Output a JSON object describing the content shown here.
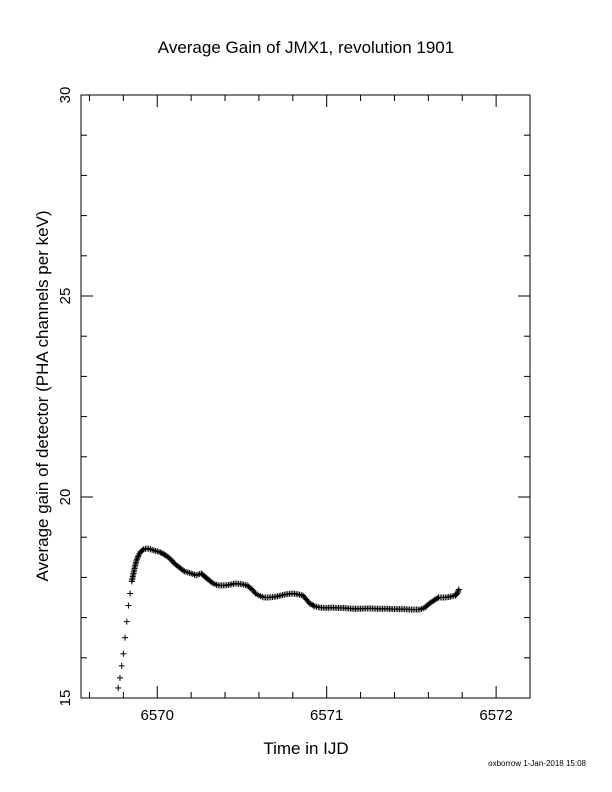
{
  "chart_data": {
    "type": "scatter",
    "title": "Average Gain of JMX1, revolution 1901",
    "xlabel": "Time in IJD",
    "ylabel": "Average gain of detector (PHA channels per keV)",
    "xlim": [
      6569.55,
      6572.2
    ],
    "ylim": [
      15,
      30
    ],
    "x_ticks": [
      "6570",
      "6571",
      "6572"
    ],
    "y_ticks": [
      "15",
      "20",
      "25",
      "30"
    ],
    "marker": "plus",
    "series": [
      {
        "x": [
          6569.77,
          6569.78,
          6569.79,
          6569.8,
          6569.81,
          6569.82,
          6569.83,
          6569.84,
          6569.85,
          6569.86,
          6569.87,
          6569.88,
          6569.89,
          6569.9,
          6569.92,
          6569.94,
          6569.96,
          6569.98,
          6570.0,
          6570.02,
          6570.05,
          6570.08,
          6570.1,
          6570.13,
          6570.16,
          6570.2,
          6570.23,
          6570.26,
          6570.28,
          6570.3,
          6570.33,
          6570.36,
          6570.4,
          6570.43,
          6570.46,
          6570.5,
          6570.53,
          6570.56,
          6570.58,
          6570.6,
          6570.63,
          6570.66,
          6570.7,
          6570.73,
          6570.76,
          6570.8,
          6570.83,
          6570.86,
          6570.88,
          6570.9,
          6570.93,
          6570.96,
          6571.0,
          6571.03,
          6571.06,
          6571.1,
          6571.15,
          6571.2,
          6571.25,
          6571.3,
          6571.35,
          6571.4,
          6571.45,
          6571.5,
          6571.55,
          6571.58,
          6571.6,
          6571.63,
          6571.66,
          6571.7,
          6571.73,
          6571.76,
          6571.77,
          6571.78
        ],
        "y": [
          15.25,
          15.5,
          15.8,
          16.1,
          16.5,
          16.9,
          17.3,
          17.6,
          17.9,
          18.1,
          18.3,
          18.45,
          18.55,
          18.63,
          18.7,
          18.72,
          18.7,
          18.67,
          18.65,
          18.62,
          18.55,
          18.45,
          18.35,
          18.25,
          18.15,
          18.1,
          18.05,
          18.1,
          18.02,
          17.95,
          17.85,
          17.8,
          17.8,
          17.82,
          17.85,
          17.83,
          17.8,
          17.7,
          17.6,
          17.55,
          17.5,
          17.5,
          17.52,
          17.55,
          17.58,
          17.6,
          17.58,
          17.55,
          17.45,
          17.35,
          17.28,
          17.25,
          17.24,
          17.25,
          17.24,
          17.24,
          17.22,
          17.22,
          17.23,
          17.22,
          17.22,
          17.21,
          17.21,
          17.2,
          17.2,
          17.25,
          17.33,
          17.42,
          17.5,
          17.5,
          17.52,
          17.55,
          17.6,
          17.7
        ]
      }
    ]
  },
  "footer": "oxborrow 1-Jan-2018 15:08"
}
